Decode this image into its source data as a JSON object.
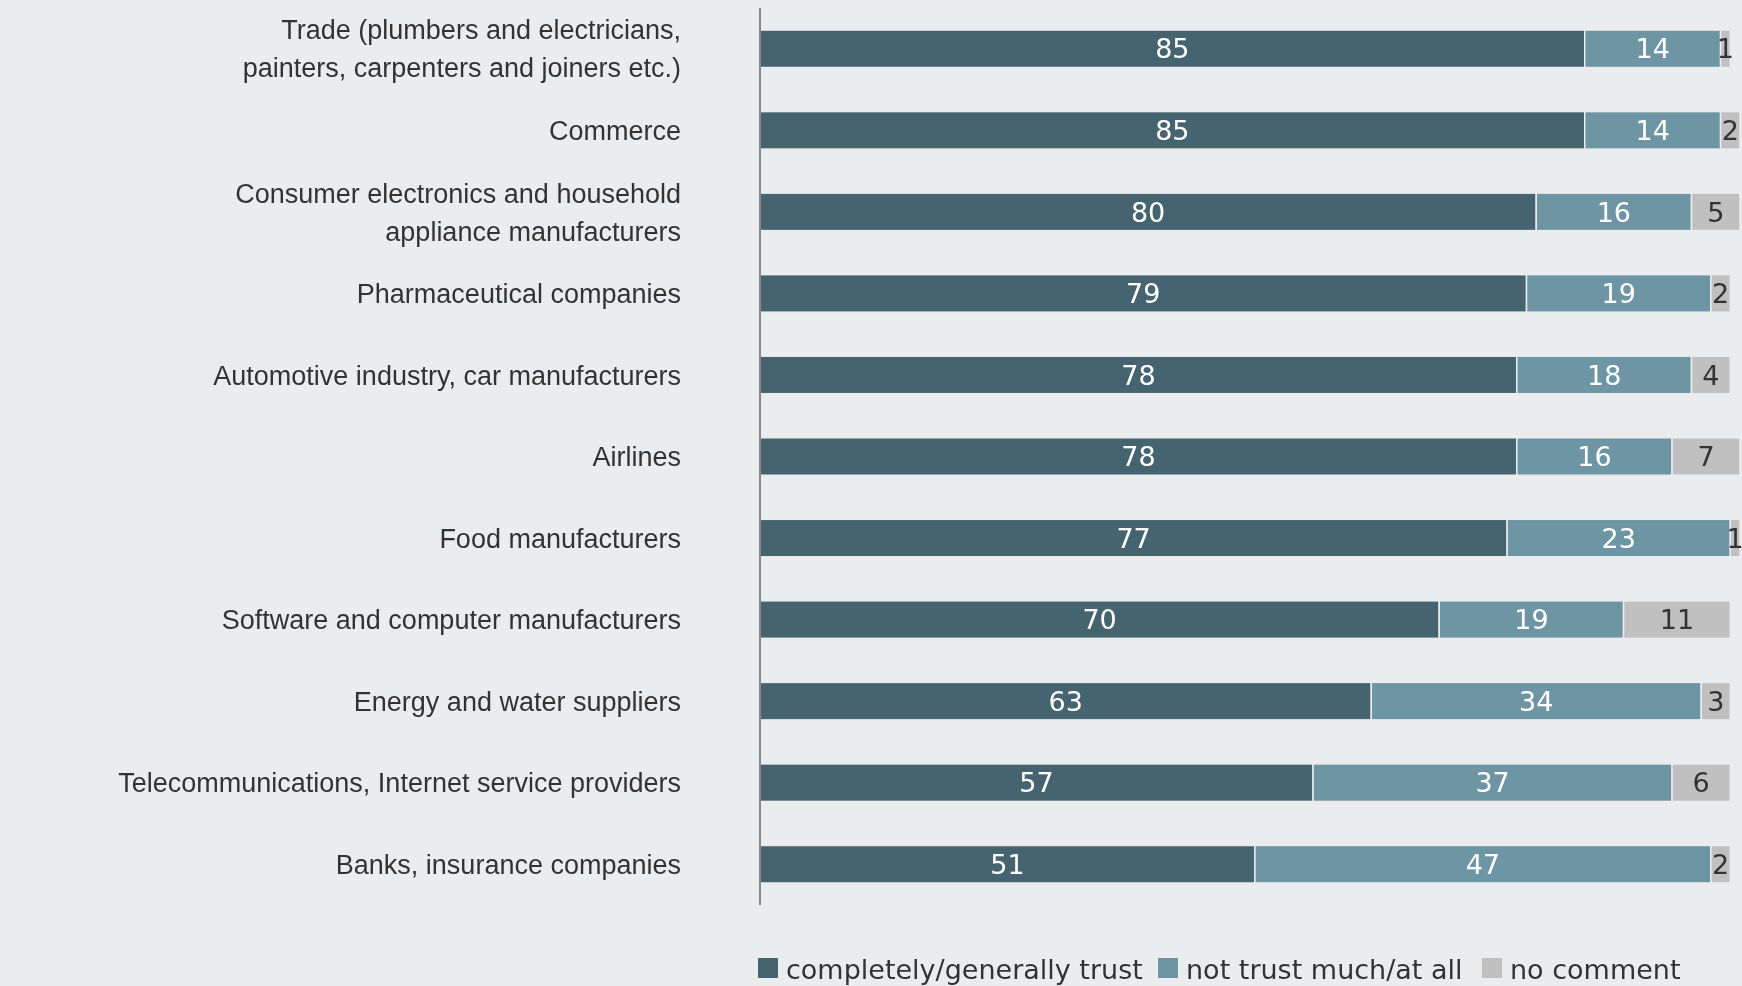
{
  "chart_data": {
    "type": "bar",
    "orientation": "horizontal",
    "stacked": true,
    "data_labels": true,
    "legend": "bottom",
    "categories": [
      "Trade (plumbers and electricians,\npainters, carpenters and joiners etc.)",
      "Commerce",
      "Consumer electronics and household\nappliance manufacturers",
      "Pharmaceutical companies",
      "Automotive industry, car manufacturers",
      "Airlines",
      "Food manufacturers",
      "Software and computer manufacturers",
      "Energy and water suppliers",
      "Telecommunications, Internet service providers",
      "Banks, insurance companies"
    ],
    "series": [
      {
        "name": "completely/generally trust",
        "color": "#466470",
        "values": [
          85,
          85,
          80,
          79,
          78,
          78,
          77,
          70,
          63,
          57,
          51
        ]
      },
      {
        "name": "not trust much/at all",
        "color": "#6e95a3",
        "values": [
          14,
          14,
          16,
          19,
          18,
          16,
          23,
          19,
          34,
          37,
          47
        ]
      },
      {
        "name": "no comment",
        "color": "#c0c0c0",
        "values": [
          1,
          2,
          5,
          2,
          4,
          7,
          1,
          11,
          3,
          6,
          2
        ]
      }
    ]
  }
}
